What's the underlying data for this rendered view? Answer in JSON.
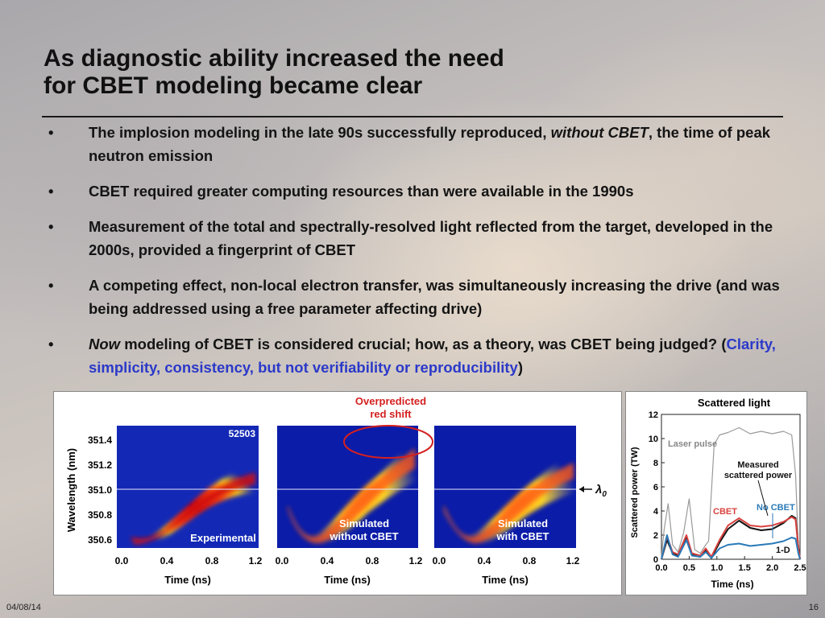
{
  "title": {
    "line1": "As diagnostic ability increased the need",
    "line2": "for CBET modeling became clear"
  },
  "bullets": [
    {
      "pre": "The implosion modeling in the late 90s successfully reproduced, ",
      "em": "without CBET",
      "post": ", the time of peak neutron emission"
    },
    {
      "text": "CBET required greater computing resources than were available in the 1990s"
    },
    {
      "text": "Measurement of the total and spectrally-resolved light reflected from the target, developed in the 2000s, provided a fingerprint of CBET"
    },
    {
      "text": "A competing effect, non-local electron transfer, was simultaneously increasing the drive (and was being addressed using a free parameter affecting drive)"
    },
    {
      "em": "Now",
      "pre": " modeling of CBET is considered crucial; how, as a theory, was CBET being judged? (",
      "blue": "Clarity, simplicity, consistency, but not verifiability or reproducibility",
      "post": ")"
    }
  ],
  "bullet_symbol": "•",
  "streak_figure": {
    "ylabel": "Wavelength (nm)",
    "yticks": [
      "351.4",
      "351.2",
      "351.0",
      "350.8",
      "350.6"
    ],
    "xlabel": "Time (ns)",
    "xticks": [
      "0.0",
      "0.4",
      "0.8",
      "1.2"
    ],
    "shot_number": "52503",
    "lambda_label": "λ",
    "lambda_sub": "0",
    "annotation_line1": "Overpredicted",
    "annotation_line2": "red shift",
    "annotation_color": "#d42020",
    "panels": [
      {
        "label1": "Experimental",
        "label2": ""
      },
      {
        "label1": "Simulated",
        "label2": "without CBET"
      },
      {
        "label1": "Simulated",
        "label2": "with CBET"
      }
    ]
  },
  "chart_data": {
    "type": "line",
    "title": "Scattered light",
    "xlabel": "Time (ns)",
    "ylabel": "Scattered power (TW)",
    "xlim": [
      0.0,
      2.5
    ],
    "ylim": [
      0,
      12
    ],
    "xticks": [
      "0.0",
      "0.5",
      "1.0",
      "1.5",
      "2.0",
      "2.5"
    ],
    "yticks": [
      "0",
      "2",
      "4",
      "6",
      "8",
      "10",
      "12"
    ],
    "annotations": [
      "Laser pulse",
      "Measured",
      "scattered power",
      "CBET",
      "No CBET",
      "1-D"
    ],
    "series": [
      {
        "name": "Laser pulse",
        "color": "#9a9a9a",
        "x": [
          0.0,
          0.05,
          0.12,
          0.2,
          0.3,
          0.4,
          0.5,
          0.6,
          0.7,
          0.8,
          0.85,
          0.95,
          1.05,
          1.2,
          1.4,
          1.6,
          1.8,
          2.0,
          2.2,
          2.35,
          2.42,
          2.47,
          2.5
        ],
        "y": [
          0.2,
          2.5,
          4.6,
          1.2,
          0.6,
          2.2,
          5.0,
          0.8,
          0.5,
          1.2,
          1.5,
          9.5,
          10.3,
          10.5,
          10.9,
          10.4,
          10.6,
          10.4,
          10.6,
          10.3,
          7.0,
          1.0,
          0.0
        ]
      },
      {
        "name": "Measured scattered power",
        "color": "#111111",
        "x": [
          0.0,
          0.1,
          0.2,
          0.3,
          0.45,
          0.55,
          0.7,
          0.8,
          0.9,
          1.05,
          1.2,
          1.4,
          1.6,
          1.8,
          2.0,
          2.2,
          2.35,
          2.42,
          2.47,
          2.5
        ],
        "y": [
          0.0,
          1.6,
          0.5,
          0.3,
          1.8,
          0.4,
          0.2,
          0.8,
          0.1,
          1.4,
          2.5,
          3.2,
          2.6,
          2.4,
          2.5,
          3.0,
          3.6,
          3.4,
          1.0,
          0.0
        ]
      },
      {
        "name": "CBET",
        "color": "#d9433f",
        "x": [
          0.0,
          0.1,
          0.2,
          0.3,
          0.45,
          0.55,
          0.7,
          0.8,
          0.9,
          1.05,
          1.2,
          1.4,
          1.6,
          1.8,
          2.0,
          2.2,
          2.35,
          2.42,
          2.47,
          2.5
        ],
        "y": [
          0.0,
          1.9,
          0.6,
          0.4,
          2.0,
          0.5,
          0.3,
          0.9,
          0.2,
          1.6,
          2.8,
          3.4,
          2.8,
          2.7,
          2.8,
          3.1,
          3.5,
          3.3,
          1.0,
          0.0
        ]
      },
      {
        "name": "No CBET",
        "color": "#2a7ab8",
        "x": [
          0.0,
          0.1,
          0.2,
          0.3,
          0.45,
          0.55,
          0.7,
          0.8,
          0.9,
          1.05,
          1.2,
          1.4,
          1.6,
          1.8,
          2.0,
          2.2,
          2.35,
          2.42,
          2.47,
          2.5
        ],
        "y": [
          0.0,
          2.0,
          0.4,
          0.2,
          1.6,
          0.3,
          0.2,
          0.6,
          0.1,
          0.9,
          1.2,
          1.3,
          1.1,
          1.2,
          1.3,
          1.5,
          1.8,
          1.7,
          0.5,
          0.0
        ]
      }
    ]
  },
  "footer": {
    "date": "04/08/14",
    "page": "16"
  }
}
